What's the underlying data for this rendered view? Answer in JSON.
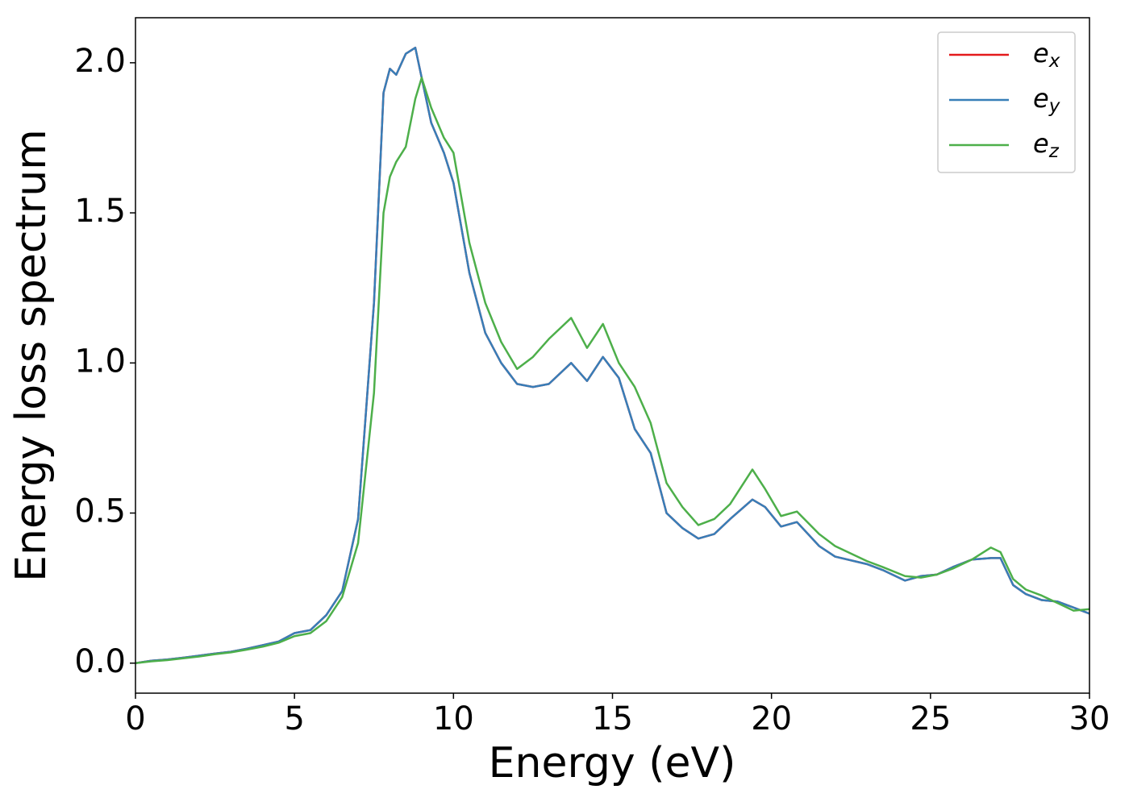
{
  "chart_data": {
    "type": "line",
    "xlabel": "Energy (eV)",
    "ylabel": "Energy loss spectrum",
    "x": [
      0,
      0.5,
      1,
      1.5,
      2,
      2.5,
      3,
      3.5,
      4,
      4.5,
      5,
      5.5,
      6,
      6.5,
      7,
      7.5,
      7.8,
      8,
      8.2,
      8.5,
      8.8,
      9,
      9.3,
      9.7,
      10,
      10.5,
      11,
      11.5,
      12,
      12.5,
      13,
      13.7,
      14.2,
      14.7,
      15.2,
      15.7,
      16.2,
      16.7,
      17.2,
      17.7,
      18.2,
      18.7,
      19.4,
      19.8,
      20.3,
      20.8,
      21.5,
      22,
      23,
      23.5,
      24.2,
      24.7,
      25.2,
      25.7,
      26.3,
      26.9,
      27.2,
      27.6,
      28,
      28.5,
      29,
      29.5,
      30
    ],
    "series": [
      {
        "name": "e_x",
        "color": "#e41a1c",
        "values": [
          0,
          0.008,
          0.012,
          0.018,
          0.025,
          0.032,
          0.038,
          0.048,
          0.06,
          0.072,
          0.1,
          0.11,
          0.16,
          0.24,
          0.48,
          1.2,
          1.9,
          1.98,
          1.96,
          2.03,
          2.05,
          1.95,
          1.8,
          1.7,
          1.6,
          1.3,
          1.1,
          1.0,
          0.93,
          0.92,
          0.93,
          1.0,
          0.94,
          1.02,
          0.95,
          0.78,
          0.7,
          0.5,
          0.45,
          0.415,
          0.43,
          0.48,
          0.545,
          0.52,
          0.455,
          0.47,
          0.39,
          0.355,
          0.33,
          0.31,
          0.275,
          0.29,
          0.295,
          0.32,
          0.345,
          0.35,
          0.35,
          0.26,
          0.23,
          0.21,
          0.205,
          0.185,
          0.165
        ]
      },
      {
        "name": "e_y",
        "color": "#377eb8",
        "values": [
          0,
          0.008,
          0.012,
          0.018,
          0.025,
          0.032,
          0.038,
          0.048,
          0.06,
          0.072,
          0.1,
          0.11,
          0.16,
          0.24,
          0.48,
          1.2,
          1.9,
          1.98,
          1.96,
          2.03,
          2.05,
          1.95,
          1.8,
          1.7,
          1.6,
          1.3,
          1.1,
          1.0,
          0.93,
          0.92,
          0.93,
          1.0,
          0.94,
          1.02,
          0.95,
          0.78,
          0.7,
          0.5,
          0.45,
          0.415,
          0.43,
          0.48,
          0.545,
          0.52,
          0.455,
          0.47,
          0.39,
          0.355,
          0.33,
          0.31,
          0.275,
          0.29,
          0.295,
          0.32,
          0.345,
          0.35,
          0.35,
          0.26,
          0.23,
          0.21,
          0.205,
          0.185,
          0.165
        ]
      },
      {
        "name": "e_z",
        "color": "#4daf4a",
        "values": [
          0,
          0.006,
          0.01,
          0.016,
          0.022,
          0.03,
          0.036,
          0.045,
          0.055,
          0.068,
          0.09,
          0.1,
          0.14,
          0.22,
          0.4,
          0.9,
          1.5,
          1.62,
          1.67,
          1.72,
          1.88,
          1.95,
          1.85,
          1.75,
          1.7,
          1.4,
          1.2,
          1.07,
          0.98,
          1.02,
          1.08,
          1.15,
          1.05,
          1.13,
          1.0,
          0.92,
          0.8,
          0.6,
          0.52,
          0.46,
          0.48,
          0.53,
          0.645,
          0.58,
          0.49,
          0.505,
          0.43,
          0.39,
          0.34,
          0.32,
          0.29,
          0.285,
          0.295,
          0.315,
          0.345,
          0.385,
          0.37,
          0.28,
          0.245,
          0.225,
          0.2,
          0.175,
          0.18
        ]
      }
    ],
    "xlim": [
      0,
      30
    ],
    "xticks": [
      0,
      5,
      10,
      15,
      20,
      25,
      30
    ],
    "ylim": [
      -0.1,
      2.15
    ],
    "yticks": [
      {
        "value": 0,
        "label": "0.0"
      },
      0.5,
      {
        "value": 1,
        "label": "1.0"
      },
      1.5,
      {
        "value": 2,
        "label": "2.0"
      }
    ],
    "grid": false,
    "legend": "upper right"
  }
}
